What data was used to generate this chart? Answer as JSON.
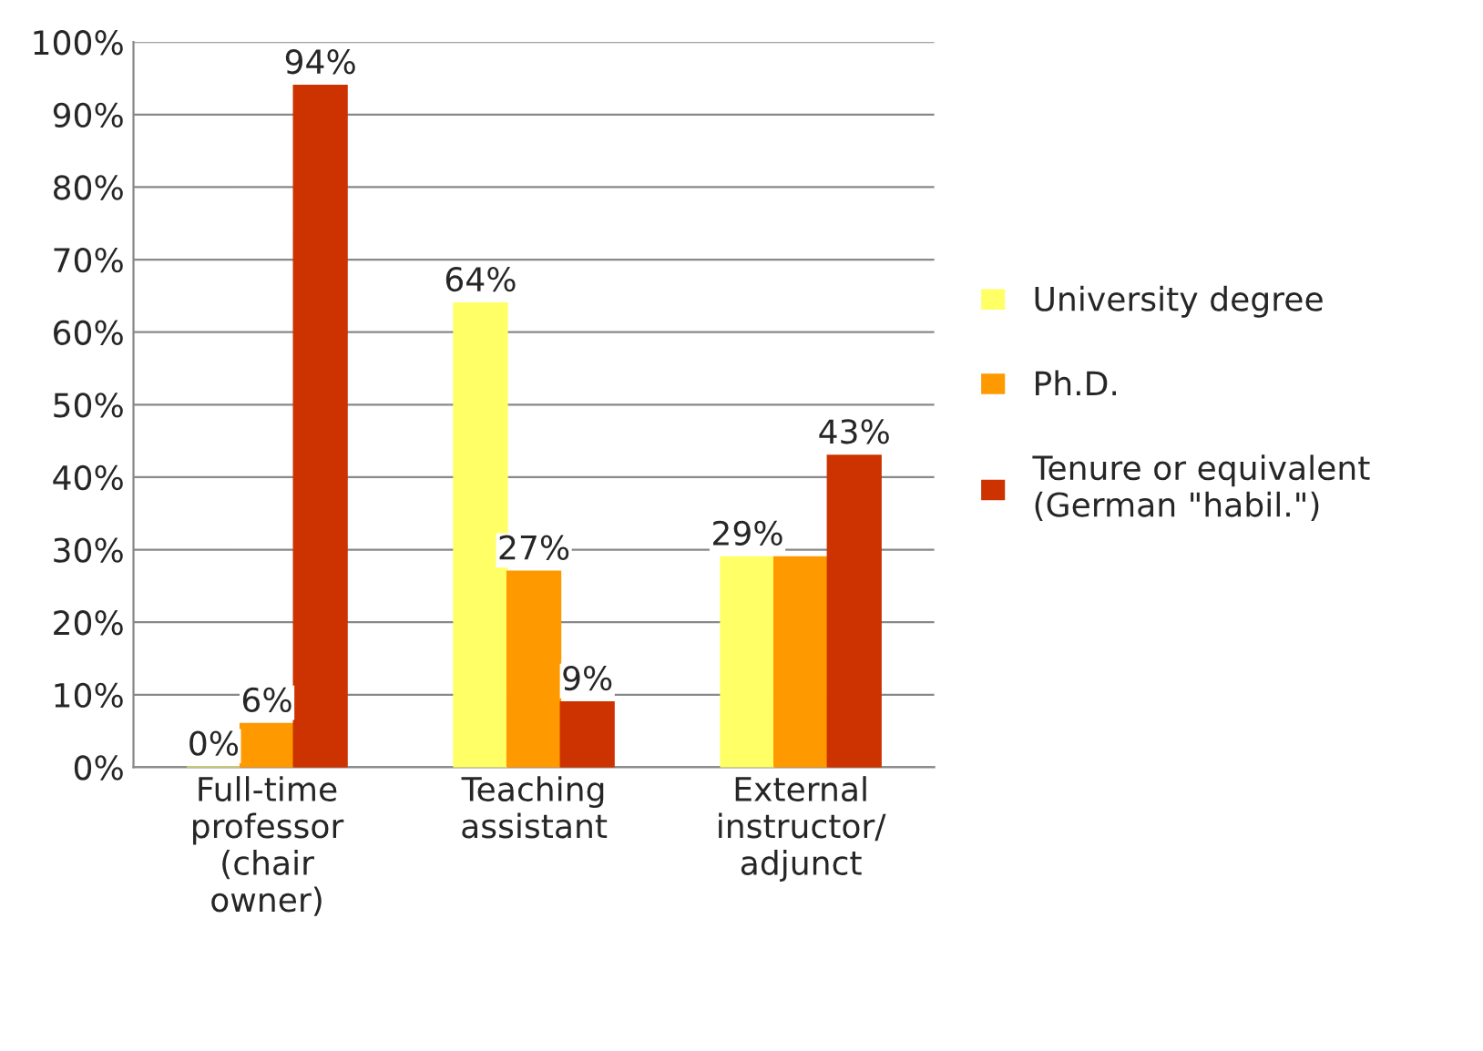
{
  "chart_data": {
    "type": "bar",
    "categories": [
      "Full-time professor (chair owner)",
      "Teaching assistant",
      "External instructor/ adjunct"
    ],
    "series": [
      {
        "name": "University degree",
        "color": "#ffff66",
        "values": [
          0,
          64,
          29
        ],
        "value_labels": [
          "0%",
          "64%",
          "29%"
        ]
      },
      {
        "name": "Ph.D.",
        "color": "#ff9900",
        "values": [
          6,
          27,
          29
        ],
        "value_labels": [
          "6%",
          "27%",
          null
        ]
      },
      {
        "name": "Tenure or equivalent (German \"habil.\")",
        "color": "#cc3300",
        "values": [
          94,
          9,
          43
        ],
        "value_labels": [
          "94%",
          "9%",
          "43%"
        ]
      }
    ],
    "ylim": [
      0,
      100
    ],
    "yticks": [
      {
        "value": 0,
        "label": "0%"
      },
      {
        "value": 10,
        "label": "10%"
      },
      {
        "value": 20,
        "label": "20%"
      },
      {
        "value": 30,
        "label": "30%"
      },
      {
        "value": 40,
        "label": "40%"
      },
      {
        "value": 50,
        "label": "50%"
      },
      {
        "value": 60,
        "label": "60%"
      },
      {
        "value": 70,
        "label": "70%"
      },
      {
        "value": 80,
        "label": "80%"
      },
      {
        "value": 90,
        "label": "90%"
      },
      {
        "value": 100,
        "label": "100%"
      }
    ],
    "grid": "y",
    "legend": "right"
  }
}
